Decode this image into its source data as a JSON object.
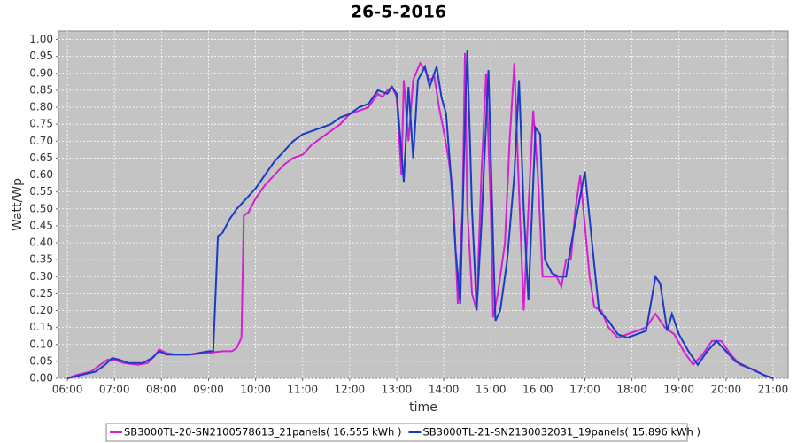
{
  "chart_data": {
    "type": "line",
    "title": "26-5-2016",
    "x_label": "time",
    "y_label": "Watt/Wp",
    "xlim": [
      5.81,
      21.32
    ],
    "ylim": [
      0,
      1.025
    ],
    "xticks": [
      {
        "value": 6,
        "label": "06:00"
      },
      {
        "value": 7,
        "label": "07:00"
      },
      {
        "value": 8,
        "label": "08:00"
      },
      {
        "value": 9,
        "label": "09:00"
      },
      {
        "value": 10,
        "label": "10:00"
      },
      {
        "value": 11,
        "label": "11:00"
      },
      {
        "value": 12,
        "label": "12:00"
      },
      {
        "value": 13,
        "label": "13:00"
      },
      {
        "value": 14,
        "label": "14:00"
      },
      {
        "value": 15,
        "label": "15:00"
      },
      {
        "value": 16,
        "label": "16:00"
      },
      {
        "value": 17,
        "label": "17:00"
      },
      {
        "value": 18,
        "label": "18:00"
      },
      {
        "value": 19,
        "label": "19:00"
      },
      {
        "value": 20,
        "label": "20:00"
      },
      {
        "value": 21,
        "label": "21:00"
      }
    ],
    "yticks": [
      {
        "value": 0,
        "label": "0.00"
      },
      {
        "value": 0.05,
        "label": "0.05"
      },
      {
        "value": 0.1,
        "label": "0.10"
      },
      {
        "value": 0.15,
        "label": "0.15"
      },
      {
        "value": 0.2,
        "label": "0.20"
      },
      {
        "value": 0.25,
        "label": "0.25"
      },
      {
        "value": 0.3,
        "label": "0.30"
      },
      {
        "value": 0.35,
        "label": "0.35"
      },
      {
        "value": 0.4,
        "label": "0.40"
      },
      {
        "value": 0.45,
        "label": "0.45"
      },
      {
        "value": 0.5,
        "label": "0.50"
      },
      {
        "value": 0.55,
        "label": "0.55"
      },
      {
        "value": 0.6,
        "label": "0.60"
      },
      {
        "value": 0.65,
        "label": "0.65"
      },
      {
        "value": 0.7,
        "label": "0.70"
      },
      {
        "value": 0.75,
        "label": "0.75"
      },
      {
        "value": 0.8,
        "label": "0.80"
      },
      {
        "value": 0.85,
        "label": "0.85"
      },
      {
        "value": 0.9,
        "label": "0.90"
      },
      {
        "value": 0.95,
        "label": "0.95"
      },
      {
        "value": 1,
        "label": "1.00"
      }
    ],
    "grid": true,
    "series": [
      {
        "name": "SB3000TL-20-SN2100578613_21panels( 16.555 kWh )",
        "color": "#d41fd4",
        "x": [
          6.0,
          6.2,
          6.5,
          6.7,
          6.85,
          7.0,
          7.2,
          7.5,
          7.7,
          7.85,
          7.95,
          8.1,
          8.3,
          8.6,
          9.0,
          9.3,
          9.5,
          9.6,
          9.7,
          9.75,
          9.85,
          10.0,
          10.2,
          10.4,
          10.6,
          10.8,
          11.0,
          11.2,
          11.4,
          11.6,
          11.8,
          12.0,
          12.2,
          12.4,
          12.5,
          12.6,
          12.7,
          12.8,
          12.9,
          13.0,
          13.1,
          13.15,
          13.25,
          13.35,
          13.5,
          13.6,
          13.7,
          13.8,
          13.9,
          14.0,
          14.1,
          14.2,
          14.3,
          14.4,
          14.45,
          14.5,
          14.6,
          14.7,
          14.8,
          14.9,
          15.0,
          15.05,
          15.15,
          15.3,
          15.4,
          15.5,
          15.6,
          15.7,
          15.8,
          15.9,
          16.0,
          16.1,
          16.25,
          16.4,
          16.5,
          16.6,
          16.7,
          16.8,
          16.9,
          17.0,
          17.1,
          17.2,
          17.35,
          17.5,
          17.7,
          17.9,
          18.1,
          18.3,
          18.5,
          18.7,
          18.9,
          19.1,
          19.3,
          19.5,
          19.7,
          19.9,
          20.1,
          20.3,
          20.6,
          20.8,
          21.0
        ],
        "values": [
          0.0,
          0.01,
          0.02,
          0.04,
          0.055,
          0.055,
          0.045,
          0.04,
          0.045,
          0.065,
          0.085,
          0.075,
          0.07,
          0.07,
          0.075,
          0.08,
          0.08,
          0.09,
          0.12,
          0.48,
          0.49,
          0.53,
          0.57,
          0.6,
          0.63,
          0.65,
          0.66,
          0.69,
          0.71,
          0.73,
          0.75,
          0.78,
          0.79,
          0.8,
          0.82,
          0.84,
          0.83,
          0.85,
          0.86,
          0.83,
          0.6,
          0.88,
          0.7,
          0.88,
          0.93,
          0.91,
          0.88,
          0.89,
          0.8,
          0.73,
          0.65,
          0.55,
          0.22,
          0.5,
          0.96,
          0.5,
          0.25,
          0.2,
          0.6,
          0.9,
          0.5,
          0.18,
          0.25,
          0.4,
          0.7,
          0.93,
          0.55,
          0.2,
          0.5,
          0.79,
          0.6,
          0.3,
          0.3,
          0.3,
          0.27,
          0.35,
          0.35,
          0.5,
          0.6,
          0.45,
          0.3,
          0.21,
          0.2,
          0.15,
          0.12,
          0.13,
          0.14,
          0.15,
          0.19,
          0.15,
          0.13,
          0.08,
          0.04,
          0.07,
          0.11,
          0.11,
          0.07,
          0.04,
          0.025,
          0.01,
          0.0
        ]
      },
      {
        "name": "SB3000TL-21-SN2130032031_19panels( 15.896 kWh )",
        "color": "#1a3cc4",
        "x": [
          6.0,
          6.3,
          6.6,
          6.8,
          6.95,
          7.1,
          7.3,
          7.6,
          7.8,
          7.95,
          8.1,
          8.3,
          8.6,
          9.0,
          9.1,
          9.2,
          9.3,
          9.45,
          9.6,
          9.8,
          10.0,
          10.2,
          10.4,
          10.6,
          10.8,
          11.0,
          11.2,
          11.4,
          11.6,
          11.8,
          12.0,
          12.2,
          12.4,
          12.6,
          12.8,
          12.9,
          13.0,
          13.15,
          13.25,
          13.35,
          13.45,
          13.6,
          13.7,
          13.85,
          13.95,
          14.05,
          14.15,
          14.25,
          14.35,
          14.45,
          14.5,
          14.6,
          14.7,
          14.8,
          14.95,
          15.05,
          15.1,
          15.2,
          15.35,
          15.5,
          15.6,
          15.7,
          15.8,
          15.95,
          16.05,
          16.15,
          16.3,
          16.45,
          16.6,
          16.7,
          16.85,
          17.0,
          17.15,
          17.3,
          17.5,
          17.7,
          17.9,
          18.1,
          18.3,
          18.5,
          18.6,
          18.75,
          18.85,
          19.0,
          19.2,
          19.4,
          19.6,
          19.8,
          20.0,
          20.2,
          20.5,
          20.8,
          21.0
        ],
        "values": [
          0.0,
          0.01,
          0.02,
          0.04,
          0.06,
          0.055,
          0.045,
          0.045,
          0.06,
          0.08,
          0.07,
          0.07,
          0.07,
          0.08,
          0.08,
          0.42,
          0.43,
          0.47,
          0.5,
          0.53,
          0.56,
          0.6,
          0.64,
          0.67,
          0.7,
          0.72,
          0.73,
          0.74,
          0.75,
          0.77,
          0.78,
          0.8,
          0.81,
          0.85,
          0.84,
          0.86,
          0.84,
          0.58,
          0.86,
          0.65,
          0.88,
          0.92,
          0.86,
          0.92,
          0.83,
          0.78,
          0.6,
          0.38,
          0.22,
          0.75,
          0.97,
          0.5,
          0.2,
          0.45,
          0.91,
          0.4,
          0.17,
          0.2,
          0.35,
          0.6,
          0.88,
          0.5,
          0.23,
          0.74,
          0.72,
          0.35,
          0.31,
          0.3,
          0.3,
          0.39,
          0.5,
          0.61,
          0.4,
          0.2,
          0.17,
          0.13,
          0.12,
          0.13,
          0.14,
          0.3,
          0.28,
          0.14,
          0.19,
          0.13,
          0.08,
          0.04,
          0.08,
          0.11,
          0.08,
          0.05,
          0.03,
          0.01,
          0.0
        ]
      }
    ]
  }
}
